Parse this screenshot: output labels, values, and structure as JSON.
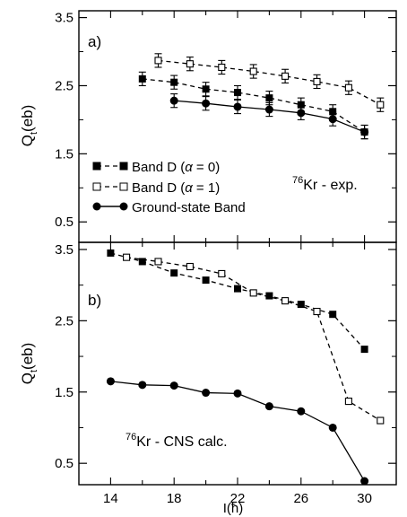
{
  "chart_data": [
    {
      "panel_label": "a)",
      "type": "line",
      "ylabel_main": "Q",
      "ylabel_sub": "t",
      "ylabel_tail": "(eb)",
      "ylim": [
        0.2,
        3.6
      ],
      "yticks": [
        "0.5",
        "1.5",
        "2.5",
        "3.5"
      ],
      "xlim": [
        12,
        32
      ],
      "nucleus_mass": "76",
      "nucleus_label": "Kr - exp.",
      "legend": [
        {
          "label_prefix": "Band D (",
          "label_alpha": "α",
          "label_suffix": " = 0)",
          "series_index": 0
        },
        {
          "label_prefix": "Band D (",
          "label_alpha": "α",
          "label_suffix": " = 1)",
          "series_index": 1
        },
        {
          "label_prefix": "Ground-state Band",
          "label_alpha": "",
          "label_suffix": "",
          "series_index": 2
        }
      ],
      "series": [
        {
          "x": [
            16,
            18,
            20,
            22,
            24,
            26,
            28,
            30
          ],
          "values": [
            2.6,
            2.55,
            2.45,
            2.4,
            2.32,
            2.22,
            2.12,
            1.82
          ],
          "errors": [
            0.1,
            0.1,
            0.1,
            0.1,
            0.1,
            0.1,
            0.1,
            0.1
          ],
          "marker": "filled-square",
          "line": "dashed"
        },
        {
          "x": [
            17,
            19,
            21,
            23,
            25,
            27,
            29,
            31
          ],
          "values": [
            2.87,
            2.82,
            2.77,
            2.71,
            2.64,
            2.56,
            2.47,
            2.22
          ],
          "errors": [
            0.1,
            0.1,
            0.1,
            0.1,
            0.1,
            0.1,
            0.1,
            0.1
          ],
          "marker": "open-square",
          "line": "dashed"
        },
        {
          "x": [
            18,
            20,
            22,
            24,
            26,
            28,
            30
          ],
          "values": [
            2.28,
            2.24,
            2.19,
            2.15,
            2.1,
            2.01,
            1.82
          ],
          "errors": [
            0.1,
            0.1,
            0.1,
            0.1,
            0.1,
            0.1,
            0.1
          ],
          "marker": "filled-circle",
          "line": "solid"
        }
      ]
    },
    {
      "panel_label": "b)",
      "type": "line",
      "ylabel_main": "Q",
      "ylabel_sub": "t",
      "ylabel_tail": "(eb)",
      "ylim": [
        0.2,
        3.6
      ],
      "yticks": [
        "0.5",
        "1.5",
        "2.5",
        "3.5"
      ],
      "xlim": [
        12,
        32
      ],
      "xticks": [
        "14",
        "18",
        "22",
        "26",
        "30"
      ],
      "xlabel_main": "I(",
      "xlabel_hbar": "ħ",
      "xlabel_tail": ")",
      "nucleus_mass": "76",
      "nucleus_label": "Kr - CNS calc.",
      "series": [
        {
          "x": [
            14,
            16,
            18,
            20,
            22,
            24,
            26,
            28,
            30
          ],
          "values": [
            3.45,
            3.33,
            3.17,
            3.07,
            2.95,
            2.85,
            2.73,
            2.59,
            2.1
          ],
          "marker": "filled-square",
          "line": "dashed"
        },
        {
          "x": [
            15,
            17,
            19,
            21,
            23,
            25,
            27,
            29,
            31
          ],
          "values": [
            3.39,
            3.33,
            3.26,
            3.16,
            2.89,
            2.78,
            2.63,
            1.37,
            1.1
          ],
          "marker": "open-square",
          "line": "dashed"
        },
        {
          "x": [
            14,
            16,
            18,
            20,
            22,
            24,
            26,
            28,
            30
          ],
          "values": [
            1.65,
            1.6,
            1.59,
            1.49,
            1.48,
            1.3,
            1.23,
            1.0,
            0.25
          ],
          "marker": "filled-circle",
          "line": "solid"
        }
      ]
    }
  ]
}
